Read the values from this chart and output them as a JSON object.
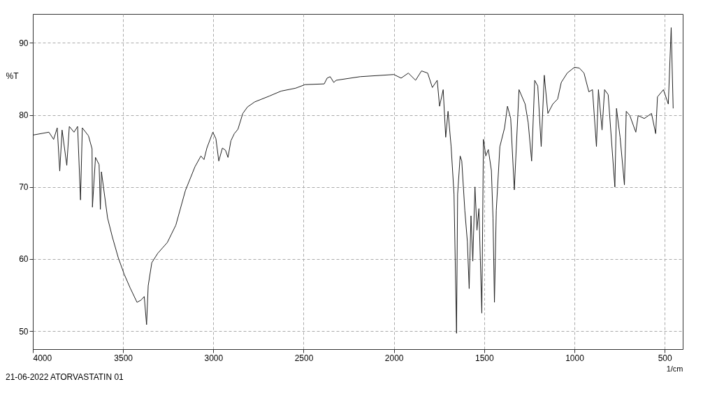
{
  "chart_data": {
    "type": "line",
    "xlabel": "1/cm",
    "ylabel": "%T",
    "annotations": [
      "21-06-2022 ATORVASTATIN 01"
    ],
    "xlim": [
      4000,
      400
    ],
    "xticks": [
      4000,
      3500,
      3000,
      2500,
      2000,
      1500,
      1000,
      500
    ],
    "ylim": [
      47.5,
      94
    ],
    "yticks": [
      50,
      60,
      70,
      80,
      90
    ],
    "grid": true,
    "line_style": "solid",
    "marker": "none",
    "series": [
      {
        "color": "#222222",
        "x": [
          4000,
          3911,
          3885,
          3865,
          3851,
          3838,
          3812,
          3798,
          3772,
          3752,
          3736,
          3726,
          3692,
          3672,
          3670,
          3653,
          3633,
          3626,
          3620,
          3586,
          3560,
          3527,
          3494,
          3461,
          3423,
          3401,
          3383,
          3370,
          3361,
          3341,
          3308,
          3255,
          3208,
          3155,
          3102,
          3069,
          3052,
          3036,
          3003,
          2986,
          2970,
          2950,
          2933,
          2919,
          2903,
          2884,
          2864,
          2837,
          2811,
          2771,
          2691,
          2625,
          2545,
          2492,
          2386,
          2370,
          2353,
          2333,
          2320,
          2187,
          2000,
          1960,
          1920,
          1880,
          1847,
          1813,
          1787,
          1760,
          1747,
          1727,
          1713,
          1700,
          1683,
          1667,
          1653,
          1647,
          1633,
          1624,
          1607,
          1593,
          1583,
          1573,
          1563,
          1551,
          1540,
          1529,
          1513,
          1504,
          1491,
          1477,
          1460,
          1451,
          1443,
          1433,
          1413,
          1387,
          1371,
          1353,
          1333,
          1307,
          1273,
          1256,
          1237,
          1220,
          1203,
          1184,
          1167,
          1147,
          1120,
          1093,
          1073,
          1040,
          1000,
          973,
          947,
          920,
          900,
          878,
          867,
          847,
          833,
          813,
          776,
          767,
          747,
          723,
          713,
          693,
          660,
          647,
          613,
          573,
          550,
          540,
          507,
          480,
          464,
          453
        ],
        "values": [
          77.2,
          77.6,
          76.6,
          78.2,
          72.2,
          77.9,
          73,
          78.4,
          77.6,
          78.4,
          68.2,
          78.2,
          77.1,
          75.3,
          67.2,
          74.1,
          73.1,
          66.9,
          72.1,
          65.7,
          63.1,
          60.2,
          57.9,
          56,
          54,
          54.3,
          54.8,
          50.9,
          56.3,
          59.5,
          60.8,
          62.3,
          64.7,
          69.5,
          72.8,
          74.3,
          73.8,
          75.4,
          77.6,
          76.7,
          73.6,
          75.4,
          75.1,
          74.1,
          76.4,
          77.4,
          78,
          80.2,
          81.1,
          81.8,
          82.6,
          83.3,
          83.7,
          84.2,
          84.3,
          85.1,
          85.3,
          84.5,
          84.8,
          85.3,
          85.6,
          85.1,
          85.8,
          84.8,
          86.1,
          85.8,
          83.8,
          84.8,
          81.2,
          83.5,
          76.9,
          80.5,
          75.6,
          69,
          49.7,
          69,
          74.3,
          73.6,
          66.7,
          62.4,
          55.9,
          66,
          59.7,
          70,
          64,
          67,
          52.5,
          76.6,
          74.3,
          75.2,
          72.3,
          65.7,
          54,
          66.7,
          75.6,
          78.2,
          81.2,
          79.5,
          69.6,
          83.5,
          81.5,
          78.9,
          73.6,
          84.8,
          84,
          75.6,
          85.5,
          80.2,
          81.5,
          82.2,
          84.5,
          85.8,
          86.6,
          86.5,
          85.8,
          83.2,
          83.5,
          75.6,
          83.5,
          77.9,
          83.5,
          82.8,
          70,
          80.9,
          76.9,
          70.3,
          80.5,
          79.9,
          77.6,
          79.9,
          79.5,
          80.2,
          77.4,
          82.5,
          83.5,
          81.5,
          92.1,
          80.9
        ]
      }
    ]
  }
}
